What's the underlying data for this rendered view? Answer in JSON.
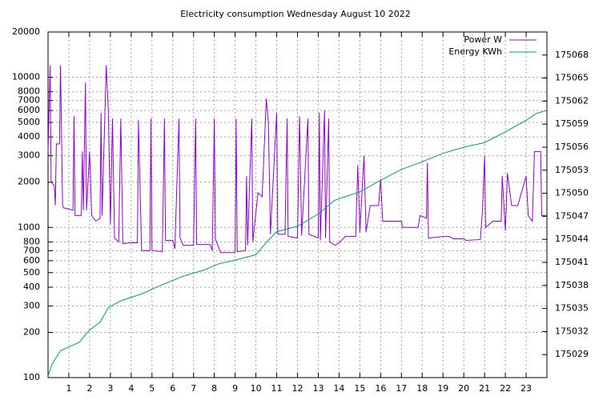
{
  "chart_data": {
    "type": "line",
    "title": "Electricity consumption Wednesday August 10 2022",
    "xlim": [
      0,
      24
    ],
    "xticks": [
      1,
      2,
      3,
      4,
      5,
      6,
      7,
      8,
      9,
      10,
      11,
      12,
      13,
      14,
      15,
      16,
      17,
      18,
      19,
      20,
      21,
      22,
      23
    ],
    "ylim": [
      100,
      20000
    ],
    "yticks": [
      100,
      200,
      300,
      400,
      500,
      600,
      700,
      800,
      1000,
      2000,
      3000,
      4000,
      5000,
      6000,
      7000,
      8000,
      10000,
      20000
    ],
    "log_y": true,
    "y2lim": [
      175026,
      175071
    ],
    "y2ticks": [
      175029,
      175032,
      175035,
      175038,
      175041,
      175044,
      175047,
      175050,
      175053,
      175056,
      175059,
      175062,
      175065,
      175068
    ],
    "grid": true,
    "legend": "top-right",
    "series": [
      {
        "name": "Power W",
        "color": "#9400d3",
        "x": [
          0,
          0.1,
          0.15,
          0.3,
          0.35,
          0.4,
          0.55,
          0.6,
          0.7,
          0.75,
          1.2,
          1.25,
          1.3,
          1.6,
          1.65,
          1.7,
          1.8,
          1.85,
          2.0,
          2.1,
          2.3,
          2.5,
          2.55,
          2.6,
          2.8,
          2.9,
          3.0,
          3.1,
          3.2,
          3.4,
          3.5,
          3.6,
          4.0,
          4.3,
          4.35,
          4.4,
          4.5,
          4.9,
          4.95,
          5.0,
          5.5,
          5.6,
          5.65,
          6.0,
          6.1,
          6.3,
          6.35,
          6.5,
          7.0,
          7.1,
          7.15,
          7.8,
          7.9,
          8.0,
          8.05,
          8.3,
          9.0,
          9.05,
          9.1,
          9.5,
          9.55,
          9.6,
          9.8,
          9.85,
          10.1,
          10.3,
          10.5,
          10.6,
          10.7,
          10.9,
          11.0,
          11.05,
          11.4,
          11.5,
          11.55,
          12.0,
          12.1,
          12.2,
          12.5,
          12.55,
          13.0,
          13.05,
          13.1,
          13.3,
          13.35,
          13.5,
          13.55,
          13.8,
          14.0,
          14.3,
          14.8,
          14.9,
          15.0,
          15.2,
          15.3,
          15.5,
          15.9,
          16.0,
          16.1,
          17.0,
          17.05,
          17.8,
          17.9,
          18.2,
          18.25,
          18.3,
          19.0,
          19.3,
          19.5,
          20.0,
          20.1,
          20.8,
          20.9,
          21.0,
          21.05,
          21.4,
          21.8,
          21.85,
          22.0,
          22.1,
          22.3,
          22.6,
          23.0,
          23.1,
          23.3,
          23.4,
          23.7,
          23.75,
          24.0
        ],
        "values": [
          3200,
          12000,
          2000,
          1900,
          1400,
          3600,
          3600,
          12000,
          1400,
          1350,
          1300,
          5500,
          1200,
          1200,
          3200,
          1300,
          9200,
          1300,
          3200,
          1200,
          1100,
          1150,
          5800,
          1200,
          12000,
          6000,
          1050,
          5300,
          850,
          800,
          5300,
          780,
          790,
          790,
          5200,
          2600,
          700,
          700,
          5300,
          700,
          690,
          5300,
          820,
          820,
          720,
          5300,
          850,
          760,
          760,
          5300,
          770,
          770,
          700,
          5300,
          840,
          680,
          680,
          5300,
          690,
          700,
          2200,
          760,
          5300,
          800,
          1700,
          1600,
          7200,
          5000,
          900,
          3200,
          5800,
          900,
          900,
          5300,
          870,
          850,
          5500,
          880,
          5300,
          900,
          850,
          5800,
          820,
          6000,
          850,
          5300,
          800,
          760,
          790,
          870,
          870,
          2600,
          930,
          3000,
          930,
          1400,
          1400,
          2100,
          1100,
          1100,
          1000,
          1000,
          1200,
          1150,
          2700,
          850,
          870,
          870,
          840,
          840,
          820,
          830,
          1300,
          3000,
          1000,
          1100,
          1100,
          2200,
          950,
          2300,
          1400,
          1400,
          2200,
          1200,
          1100,
          3200,
          3200,
          1200,
          1200
        ]
      },
      {
        "name": "Energy KWh",
        "color": "#009e73",
        "axis": "y2",
        "x": [
          0,
          0.2,
          0.6,
          1.5,
          2.0,
          2.5,
          2.9,
          3.5,
          4.5,
          5.5,
          6.5,
          7.5,
          8.2,
          9.0,
          10.0,
          10.5,
          11.0,
          12.0,
          13.0,
          13.8,
          15.0,
          16.0,
          17.0,
          18.0,
          19.0,
          20.0,
          21.0,
          22.0,
          23.0,
          23.5,
          24.0
        ],
        "values": [
          175026.2,
          175027.8,
          175029.5,
          175030.6,
          175032.2,
          175033.2,
          175035.1,
          175036.0,
          175036.9,
          175038.1,
          175039.2,
          175040.0,
          175040.8,
          175041.3,
          175042.0,
          175043.6,
          175045.0,
          175045.7,
          175047.3,
          175049.1,
          175050.2,
          175051.7,
          175053.1,
          175054.1,
          175055.2,
          175056.0,
          175056.6,
          175058.0,
          175059.5,
          175060.4,
          175060.8
        ]
      }
    ]
  }
}
